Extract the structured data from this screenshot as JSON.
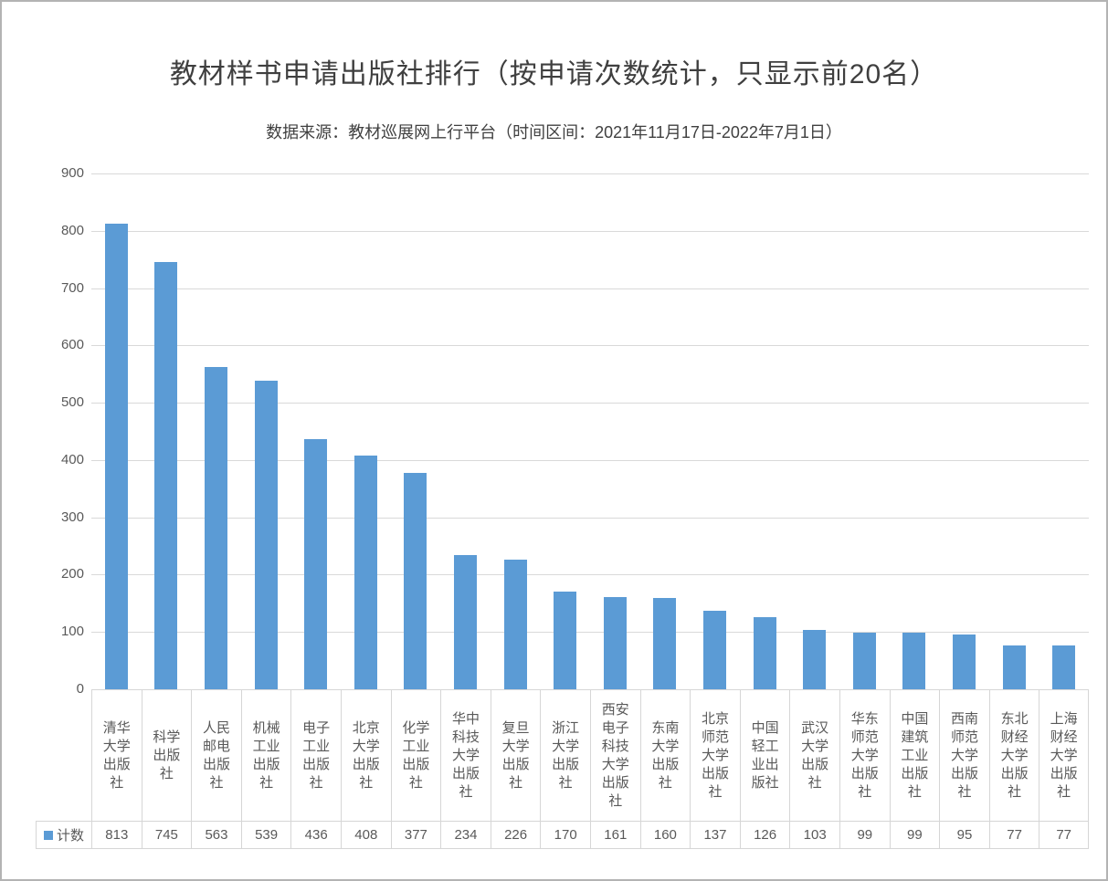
{
  "title": "教材样书申请出版社排行（按申请次数统计，只显示前20名）",
  "subtitle": "数据来源：教材巡展网上行平台（时间区间：2021年11月17日-2022年7月1日）",
  "legend": {
    "series_label": "计数"
  },
  "colors": {
    "bar": "#5B9BD5",
    "grid": "#D9D9D9",
    "axis_text": "#595959",
    "title_text": "#3F3F3F",
    "table_border": "#D6D6D6",
    "frame_border": "#B3B3B3"
  },
  "chart_data": {
    "type": "bar",
    "title": "教材样书申请出版社排行（按申请次数统计，只显示前20名）",
    "subtitle": "数据来源：教材巡展网上行平台（时间区间：2021年11月17日-2022年7月1日）",
    "series_name": "计数",
    "categories": [
      "清华大学出版社",
      "科学出版社",
      "人民邮电出版社",
      "机械工业出版社",
      "电子工业出版社",
      "北京大学出版社",
      "化学工业出版社",
      "华中科技大学出版社",
      "复旦大学出版社",
      "浙江大学出版社",
      "西安电子科技大学出版社",
      "东南大学出版社",
      "北京师范大学出版社",
      "中国轻工业出版社",
      "武汉大学出版社",
      "华东师范大学出版社",
      "中国建筑工业出版社",
      "西南师范大学出版社",
      "东北财经大学出版社",
      "上海财经大学出版社"
    ],
    "values": [
      813,
      745,
      563,
      539,
      436,
      408,
      377,
      234,
      226,
      170,
      161,
      160,
      137,
      126,
      103,
      99,
      99,
      95,
      77,
      77
    ],
    "xlabel": "",
    "ylabel": "",
    "ylim": [
      0,
      900
    ],
    "y_ticks": [
      0,
      100,
      200,
      300,
      400,
      500,
      600,
      700,
      800,
      900
    ],
    "grid": true,
    "legend_position": "bottom-table-row-header",
    "bar_color": "#5B9BD5"
  }
}
